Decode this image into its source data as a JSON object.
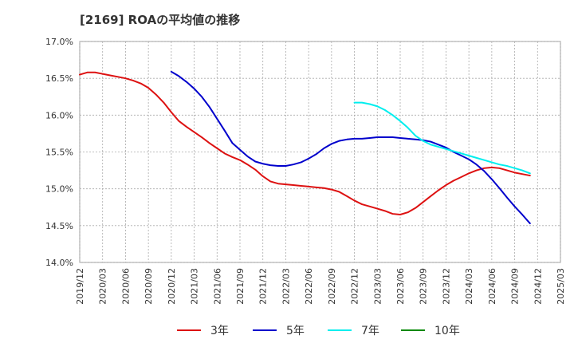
{
  "chart_data": {
    "type": "line",
    "title": "[2169]  ROAの平均値の推移",
    "xlabel": "",
    "ylabel": "",
    "ylim": [
      14.0,
      17.0
    ],
    "yticks": [
      14.0,
      14.5,
      15.0,
      15.5,
      16.0,
      16.5,
      17.0
    ],
    "ytick_labels": [
      "14.0%",
      "14.5%",
      "15.0%",
      "15.5%",
      "16.0%",
      "16.5%",
      "17.0%"
    ],
    "x_labels": [
      "2019/12",
      "2020/03",
      "2020/06",
      "2020/09",
      "2020/12",
      "2021/03",
      "2021/06",
      "2021/09",
      "2021/12",
      "2022/03",
      "2022/06",
      "2022/09",
      "2022/12",
      "2023/03",
      "2023/06",
      "2023/09",
      "2023/12",
      "2024/03",
      "2024/06",
      "2024/09",
      "2024/12",
      "2025/03"
    ],
    "grid": true,
    "legend_position": "bottom",
    "series": [
      {
        "name": "3年",
        "color": "#dd1111",
        "points": [
          [
            0,
            16.55
          ],
          [
            0.33,
            16.58
          ],
          [
            0.67,
            16.58
          ],
          [
            1,
            16.56
          ],
          [
            1.33,
            16.54
          ],
          [
            1.67,
            16.52
          ],
          [
            2,
            16.5
          ],
          [
            2.33,
            16.47
          ],
          [
            2.67,
            16.43
          ],
          [
            3,
            16.37
          ],
          [
            3.33,
            16.28
          ],
          [
            3.67,
            16.17
          ],
          [
            4,
            16.04
          ],
          [
            4.33,
            15.92
          ],
          [
            4.67,
            15.84
          ],
          [
            5,
            15.77
          ],
          [
            5.33,
            15.7
          ],
          [
            5.67,
            15.62
          ],
          [
            6,
            15.55
          ],
          [
            6.33,
            15.48
          ],
          [
            6.67,
            15.43
          ],
          [
            7,
            15.39
          ],
          [
            7.33,
            15.33
          ],
          [
            7.67,
            15.26
          ],
          [
            8,
            15.17
          ],
          [
            8.33,
            15.1
          ],
          [
            8.67,
            15.07
          ],
          [
            9,
            15.06
          ],
          [
            9.33,
            15.05
          ],
          [
            9.67,
            15.04
          ],
          [
            10,
            15.03
          ],
          [
            10.33,
            15.02
          ],
          [
            10.67,
            15.01
          ],
          [
            11,
            14.99
          ],
          [
            11.33,
            14.96
          ],
          [
            11.67,
            14.9
          ],
          [
            12,
            14.84
          ],
          [
            12.33,
            14.79
          ],
          [
            12.67,
            14.76
          ],
          [
            13,
            14.73
          ],
          [
            13.33,
            14.7
          ],
          [
            13.67,
            14.66
          ],
          [
            14,
            14.65
          ],
          [
            14.33,
            14.68
          ],
          [
            14.67,
            14.74
          ],
          [
            15,
            14.82
          ],
          [
            15.33,
            14.9
          ],
          [
            15.67,
            14.98
          ],
          [
            16,
            15.05
          ],
          [
            16.33,
            15.11
          ],
          [
            16.67,
            15.16
          ],
          [
            17,
            15.21
          ],
          [
            17.33,
            15.25
          ],
          [
            17.67,
            15.28
          ],
          [
            18,
            15.29
          ],
          [
            18.33,
            15.28
          ],
          [
            18.67,
            15.25
          ],
          [
            19,
            15.22
          ],
          [
            19.33,
            15.2
          ],
          [
            19.67,
            15.18
          ]
        ]
      },
      {
        "name": "5年",
        "color": "#0000cc",
        "points": [
          [
            4,
            16.59
          ],
          [
            4.33,
            16.53
          ],
          [
            4.67,
            16.45
          ],
          [
            5,
            16.36
          ],
          [
            5.33,
            16.25
          ],
          [
            5.67,
            16.11
          ],
          [
            6,
            15.95
          ],
          [
            6.33,
            15.79
          ],
          [
            6.67,
            15.62
          ],
          [
            7,
            15.53
          ],
          [
            7.33,
            15.44
          ],
          [
            7.67,
            15.37
          ],
          [
            8,
            15.34
          ],
          [
            8.33,
            15.32
          ],
          [
            8.67,
            15.31
          ],
          [
            9,
            15.31
          ],
          [
            9.33,
            15.33
          ],
          [
            9.67,
            15.36
          ],
          [
            10,
            15.41
          ],
          [
            10.33,
            15.47
          ],
          [
            10.67,
            15.55
          ],
          [
            11,
            15.61
          ],
          [
            11.33,
            15.65
          ],
          [
            11.67,
            15.67
          ],
          [
            12,
            15.68
          ],
          [
            12.33,
            15.68
          ],
          [
            12.67,
            15.69
          ],
          [
            13,
            15.7
          ],
          [
            13.33,
            15.7
          ],
          [
            13.67,
            15.7
          ],
          [
            14,
            15.69
          ],
          [
            14.33,
            15.68
          ],
          [
            14.67,
            15.67
          ],
          [
            15,
            15.66
          ],
          [
            15.33,
            15.64
          ],
          [
            15.67,
            15.6
          ],
          [
            16,
            15.56
          ],
          [
            16.33,
            15.5
          ],
          [
            16.67,
            15.45
          ],
          [
            17,
            15.4
          ],
          [
            17.33,
            15.33
          ],
          [
            17.67,
            15.24
          ],
          [
            18,
            15.13
          ],
          [
            18.33,
            15.01
          ],
          [
            18.67,
            14.88
          ],
          [
            19,
            14.76
          ],
          [
            19.33,
            14.65
          ],
          [
            19.67,
            14.53
          ]
        ]
      },
      {
        "name": "7年",
        "color": "#00eeee",
        "points": [
          [
            12,
            16.17
          ],
          [
            12.33,
            16.17
          ],
          [
            12.67,
            16.15
          ],
          [
            13,
            16.12
          ],
          [
            13.33,
            16.07
          ],
          [
            13.67,
            16.0
          ],
          [
            14,
            15.92
          ],
          [
            14.33,
            15.83
          ],
          [
            14.67,
            15.72
          ],
          [
            15,
            15.65
          ],
          [
            15.33,
            15.6
          ],
          [
            15.67,
            15.57
          ],
          [
            16,
            15.54
          ],
          [
            16.33,
            15.51
          ],
          [
            16.67,
            15.48
          ],
          [
            17,
            15.45
          ],
          [
            17.33,
            15.42
          ],
          [
            17.67,
            15.39
          ],
          [
            18,
            15.36
          ],
          [
            18.33,
            15.33
          ],
          [
            18.67,
            15.31
          ],
          [
            19,
            15.28
          ],
          [
            19.33,
            15.25
          ],
          [
            19.67,
            15.21
          ]
        ]
      },
      {
        "name": "10年",
        "color": "#008800",
        "points": []
      }
    ]
  }
}
